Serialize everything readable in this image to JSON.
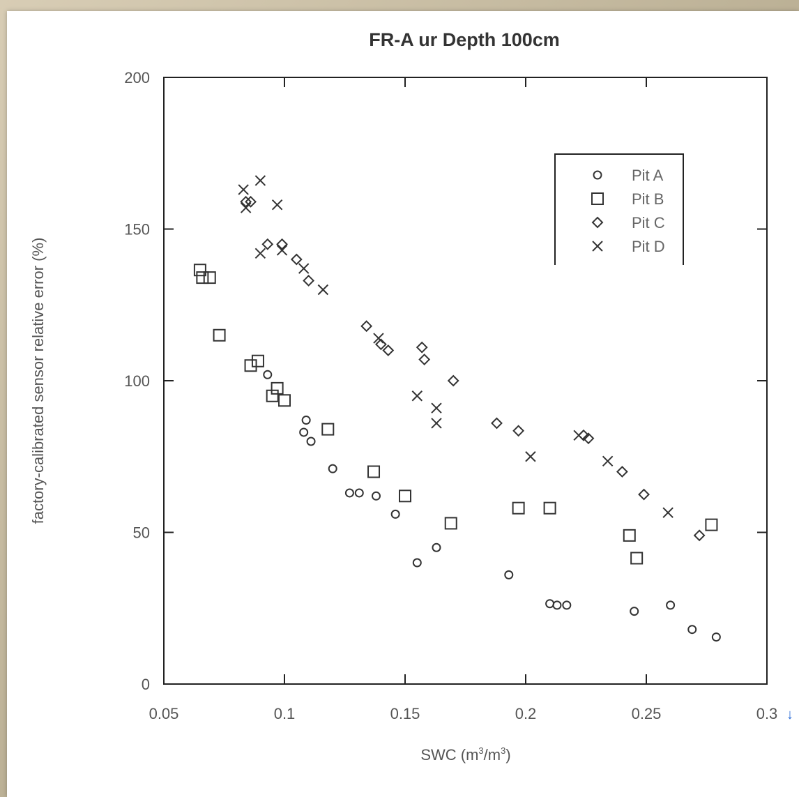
{
  "chart_data": {
    "type": "scatter",
    "title": "FR-A ur Depth 100cm",
    "xlabel": "SWC (m³/m³)",
    "ylabel": "factory-calibrated sensor relative error (%)",
    "xlim": [
      0.05,
      0.3
    ],
    "ylim": [
      0,
      200
    ],
    "x_ticks": [
      0.05,
      0.1,
      0.15,
      0.2,
      0.25,
      0.3
    ],
    "x_tick_labels": [
      "0.05",
      "0.1",
      "0.15",
      "0.2",
      "0.25",
      "0.3"
    ],
    "y_ticks": [
      0,
      50,
      100,
      150,
      200
    ],
    "y_tick_labels": [
      "0",
      "50",
      "100",
      "150",
      "200"
    ],
    "grid": false,
    "legend_position": "top-right",
    "series": [
      {
        "name": "Pit A",
        "marker": "circle",
        "points": [
          [
            0.093,
            102
          ],
          [
            0.108,
            83
          ],
          [
            0.109,
            87
          ],
          [
            0.111,
            80
          ],
          [
            0.12,
            71
          ],
          [
            0.127,
            63
          ],
          [
            0.131,
            63
          ],
          [
            0.138,
            62
          ],
          [
            0.146,
            56
          ],
          [
            0.155,
            40
          ],
          [
            0.163,
            45
          ],
          [
            0.193,
            36
          ],
          [
            0.21,
            26.5
          ],
          [
            0.213,
            26
          ],
          [
            0.217,
            26
          ],
          [
            0.245,
            24
          ],
          [
            0.26,
            26
          ],
          [
            0.269,
            18
          ],
          [
            0.279,
            15.5
          ]
        ]
      },
      {
        "name": "Pit B",
        "marker": "square",
        "points": [
          [
            0.065,
            136.5
          ],
          [
            0.066,
            134
          ],
          [
            0.069,
            134
          ],
          [
            0.073,
            115
          ],
          [
            0.086,
            105
          ],
          [
            0.089,
            106.5
          ],
          [
            0.095,
            95
          ],
          [
            0.097,
            97.5
          ],
          [
            0.1,
            93.5
          ],
          [
            0.118,
            84
          ],
          [
            0.137,
            70
          ],
          [
            0.15,
            62
          ],
          [
            0.169,
            53
          ],
          [
            0.197,
            58
          ],
          [
            0.21,
            58
          ],
          [
            0.243,
            49
          ],
          [
            0.246,
            41.5
          ],
          [
            0.277,
            52.5
          ]
        ]
      },
      {
        "name": "Pit C",
        "marker": "diamond",
        "points": [
          [
            0.084,
            159
          ],
          [
            0.086,
            159
          ],
          [
            0.093,
            145
          ],
          [
            0.099,
            145
          ],
          [
            0.105,
            140
          ],
          [
            0.11,
            133
          ],
          [
            0.134,
            118
          ],
          [
            0.14,
            112
          ],
          [
            0.143,
            110
          ],
          [
            0.157,
            111
          ],
          [
            0.158,
            107
          ],
          [
            0.17,
            100
          ],
          [
            0.188,
            86
          ],
          [
            0.197,
            83.5
          ],
          [
            0.224,
            82
          ],
          [
            0.226,
            81
          ],
          [
            0.24,
            70
          ],
          [
            0.249,
            62.5
          ],
          [
            0.272,
            49
          ]
        ]
      },
      {
        "name": "Pit D",
        "marker": "x",
        "points": [
          [
            0.083,
            163
          ],
          [
            0.084,
            157
          ],
          [
            0.09,
            166
          ],
          [
            0.097,
            158
          ],
          [
            0.09,
            142
          ],
          [
            0.099,
            143
          ],
          [
            0.108,
            137
          ],
          [
            0.116,
            130
          ],
          [
            0.139,
            114
          ],
          [
            0.155,
            95
          ],
          [
            0.163,
            91
          ],
          [
            0.163,
            86
          ],
          [
            0.202,
            75
          ],
          [
            0.222,
            82
          ],
          [
            0.234,
            73.5
          ],
          [
            0.259,
            56.5
          ]
        ]
      }
    ]
  }
}
